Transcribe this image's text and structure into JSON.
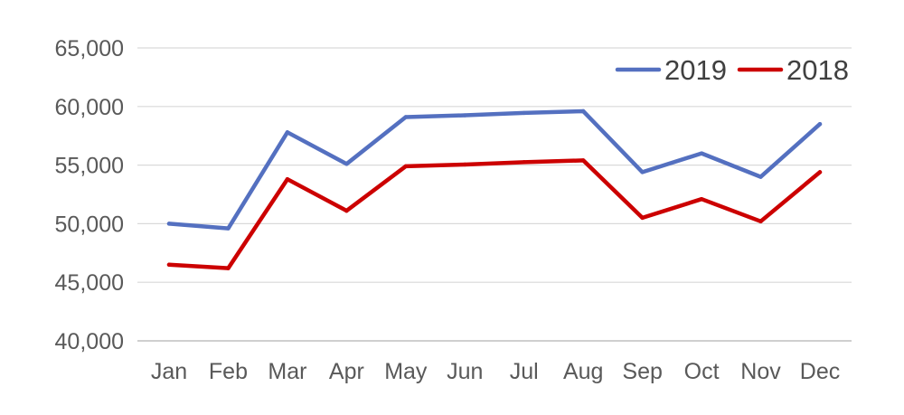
{
  "chart_data": {
    "type": "line",
    "title": "",
    "xlabel": "",
    "ylabel": "",
    "categories": [
      "Jan",
      "Feb",
      "Mar",
      "Apr",
      "May",
      "Jun",
      "Jul",
      "Aug",
      "Sep",
      "Oct",
      "Nov",
      "Dec"
    ],
    "y_ticks": [
      "40,000",
      "45,000",
      "50,000",
      "55,000",
      "60,000",
      "65,000"
    ],
    "ylim": [
      40000,
      65000
    ],
    "grid": true,
    "legend_position": "top-right",
    "series": [
      {
        "name": "2019",
        "color": "#5470c0",
        "values": [
          50000,
          49600,
          57800,
          55100,
          59100,
          59250,
          59450,
          59600,
          54400,
          56000,
          54000,
          58500
        ]
      },
      {
        "name": "2018",
        "color": "#cc0000",
        "values": [
          46500,
          46200,
          53800,
          51100,
          54900,
          55050,
          55250,
          55400,
          50500,
          52100,
          50200,
          54400
        ]
      }
    ]
  }
}
